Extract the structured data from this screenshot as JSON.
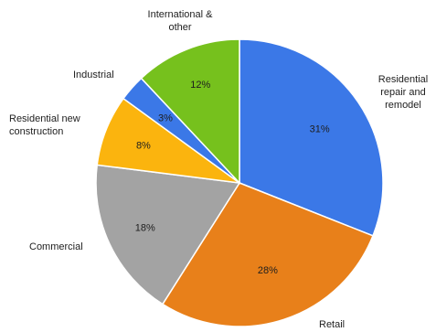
{
  "chart_data": {
    "type": "pie",
    "title": "",
    "start_angle_deg": 0,
    "direction": "clockwise",
    "slices": [
      {
        "label_lines": [
          "Residential",
          "repair and",
          "remodel"
        ],
        "value": 31,
        "value_label": "31%",
        "color": "#3b78e7"
      },
      {
        "label_lines": [
          "Retail"
        ],
        "value": 28,
        "value_label": "28%",
        "color": "#e8801a"
      },
      {
        "label_lines": [
          "Commercial"
        ],
        "value": 18,
        "value_label": "18%",
        "color": "#a3a3a3"
      },
      {
        "label_lines": [
          "Residential new",
          "construction"
        ],
        "value": 8,
        "value_label": "8%",
        "color": "#fbb40e"
      },
      {
        "label_lines": [
          "Industrial"
        ],
        "value": 3,
        "value_label": "3%",
        "color": "#3b78e7"
      },
      {
        "label_lines": [
          "International &",
          "other"
        ],
        "value": 12,
        "value_label": "12%",
        "color": "#76c11d"
      }
    ]
  }
}
